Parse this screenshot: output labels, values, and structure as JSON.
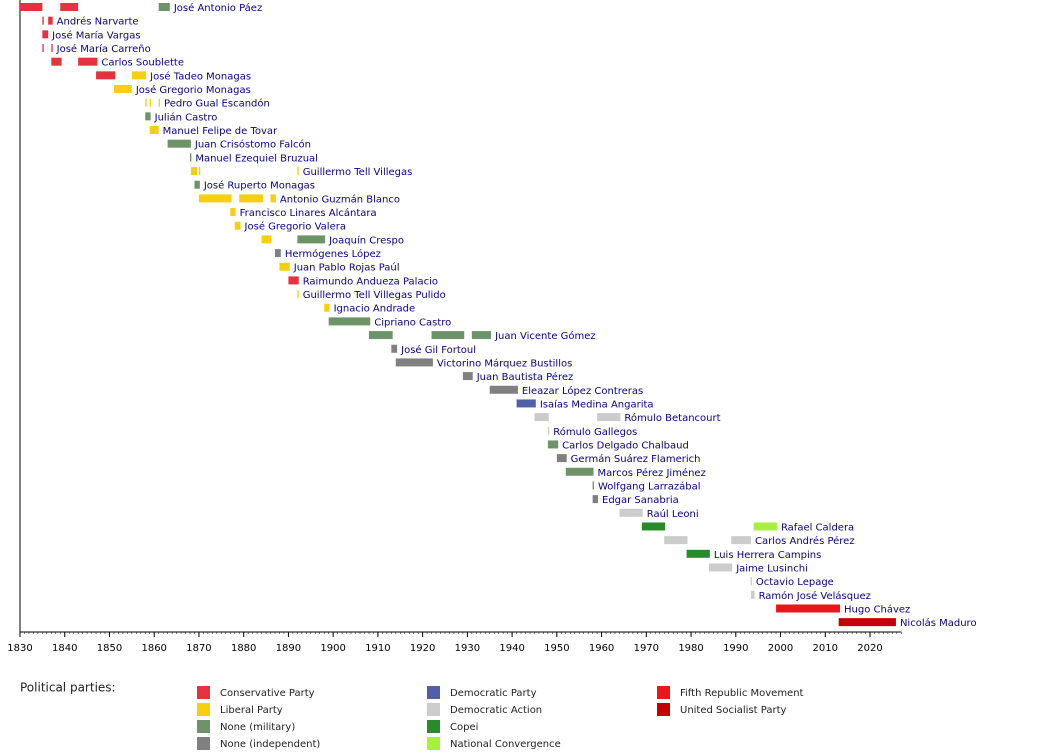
{
  "chart_data": {
    "type": "timeline",
    "xlim": [
      1830,
      2027
    ],
    "xticks": [
      1830,
      1840,
      1850,
      1860,
      1870,
      1880,
      1890,
      1900,
      1910,
      1920,
      1930,
      1940,
      1950,
      1960,
      1970,
      1980,
      1990,
      2000,
      2010,
      2020
    ],
    "legend_title": "Political parties:",
    "parties": [
      {
        "name": "Conservative Party",
        "color": "#e5323f"
      },
      {
        "name": "Liberal Party",
        "color": "#f6d00c"
      },
      {
        "name": "None (military)",
        "color": "#6d9468"
      },
      {
        "name": "None (independent)",
        "color": "#808080"
      },
      {
        "name": "Democratic Party",
        "color": "#5060a8"
      },
      {
        "name": "Democratic Action",
        "color": "#cccccc"
      },
      {
        "name": "Copei",
        "color": "#2a8a2a"
      },
      {
        "name": "National Convergence",
        "color": "#a8f040"
      },
      {
        "name": "Fifth Republic Movement",
        "color": "#e81818"
      },
      {
        "name": "United Socialist Party",
        "color": "#c40000"
      }
    ],
    "rows": [
      {
        "name": "José Antonio Páez",
        "terms": [
          {
            "start": 1830,
            "end": 1835,
            "party": "Conservative Party"
          },
          {
            "start": 1839,
            "end": 1843,
            "party": "Conservative Party"
          },
          {
            "start": 1861,
            "end": 1863.5,
            "party": "None (military)"
          }
        ]
      },
      {
        "name": "Andrés Narvarte",
        "terms": [
          {
            "start": 1835,
            "end": 1835.3,
            "party": "Conservative Party"
          },
          {
            "start": 1836.3,
            "end": 1837.3,
            "party": "Conservative Party"
          }
        ]
      },
      {
        "name": "José María Vargas",
        "terms": [
          {
            "start": 1835,
            "end": 1836.3,
            "party": "Conservative Party"
          }
        ]
      },
      {
        "name": "José María Carreño",
        "terms": [
          {
            "start": 1835,
            "end": 1835.3,
            "party": "Conservative Party"
          },
          {
            "start": 1837,
            "end": 1837.3,
            "party": "Conservative Party"
          }
        ]
      },
      {
        "name": "Carlos Soublette",
        "terms": [
          {
            "start": 1837,
            "end": 1839.3,
            "party": "Conservative Party"
          },
          {
            "start": 1843,
            "end": 1847.3,
            "party": "Conservative Party"
          }
        ]
      },
      {
        "name": "José Tadeo Monagas",
        "terms": [
          {
            "start": 1847,
            "end": 1851.3,
            "party": "Conservative Party"
          },
          {
            "start": 1855,
            "end": 1858.2,
            "party": "Liberal Party"
          }
        ]
      },
      {
        "name": "José Gregorio Monagas",
        "terms": [
          {
            "start": 1851,
            "end": 1855,
            "party": "Liberal Party"
          }
        ]
      },
      {
        "name": "Pedro Gual Escandón",
        "terms": [
          {
            "start": 1858,
            "end": 1858.3,
            "party": "Liberal Party"
          },
          {
            "start": 1859,
            "end": 1859.3,
            "party": "Liberal Party"
          },
          {
            "start": 1861,
            "end": 1861.3,
            "party": "Liberal Party"
          }
        ]
      },
      {
        "name": "Julián Castro",
        "terms": [
          {
            "start": 1858,
            "end": 1859.2,
            "party": "None (military)"
          }
        ]
      },
      {
        "name": "Manuel Felipe de Tovar",
        "terms": [
          {
            "start": 1859,
            "end": 1861,
            "party": "Liberal Party"
          }
        ]
      },
      {
        "name": "Juan Crisóstomo Falcón",
        "terms": [
          {
            "start": 1863,
            "end": 1868.2,
            "party": "None (military)"
          }
        ]
      },
      {
        "name": "Manuel Ezequiel Bruzual",
        "terms": [
          {
            "start": 1868,
            "end": 1868.3,
            "party": "None (military)"
          }
        ]
      },
      {
        "name": "Guillermo Tell Villegas",
        "terms": [
          {
            "start": 1868.2,
            "end": 1869.6,
            "party": "Liberal Party"
          },
          {
            "start": 1870,
            "end": 1870.3,
            "party": "Liberal Party"
          },
          {
            "start": 1892,
            "end": 1892.3,
            "party": "Liberal Party"
          }
        ]
      },
      {
        "name": "José Ruperto Monagas",
        "terms": [
          {
            "start": 1869,
            "end": 1870.2,
            "party": "None (military)"
          }
        ]
      },
      {
        "name": "Antonio Guzmán Blanco",
        "terms": [
          {
            "start": 1870,
            "end": 1877.3,
            "party": "Liberal Party"
          },
          {
            "start": 1879,
            "end": 1884.3,
            "party": "Liberal Party"
          },
          {
            "start": 1886,
            "end": 1887.2,
            "party": "Liberal Party"
          }
        ]
      },
      {
        "name": "Francisco Linares Alcántara",
        "terms": [
          {
            "start": 1877,
            "end": 1878.2,
            "party": "Liberal Party"
          }
        ]
      },
      {
        "name": "José Gregorio Valera",
        "terms": [
          {
            "start": 1878,
            "end": 1879.3,
            "party": "Liberal Party"
          }
        ]
      },
      {
        "name": "Joaquín Crespo",
        "terms": [
          {
            "start": 1884,
            "end": 1886.2,
            "party": "Liberal Party"
          },
          {
            "start": 1892,
            "end": 1898.2,
            "party": "None (military)"
          }
        ]
      },
      {
        "name": "Hermógenes López",
        "terms": [
          {
            "start": 1887,
            "end": 1888.3,
            "party": "None (independent)"
          }
        ]
      },
      {
        "name": "Juan Pablo Rojas Paúl",
        "terms": [
          {
            "start": 1888,
            "end": 1890.3,
            "party": "Liberal Party"
          }
        ]
      },
      {
        "name": "Raimundo Andueza Palacio",
        "terms": [
          {
            "start": 1890,
            "end": 1892.3,
            "party": "Conservative Party"
          }
        ]
      },
      {
        "name": "Guillermo Tell Villegas Pulido",
        "terms": [
          {
            "start": 1892,
            "end": 1892.3,
            "party": "Liberal Party"
          }
        ]
      },
      {
        "name": "Ignacio Andrade",
        "terms": [
          {
            "start": 1898,
            "end": 1899.2,
            "party": "Liberal Party"
          }
        ]
      },
      {
        "name": "Cipriano Castro",
        "terms": [
          {
            "start": 1899,
            "end": 1908.3,
            "party": "None (military)"
          }
        ]
      },
      {
        "name": "Juan Vicente Gómez",
        "terms": [
          {
            "start": 1908,
            "end": 1913.3,
            "party": "None (military)"
          },
          {
            "start": 1922,
            "end": 1929.3,
            "party": "None (military)"
          },
          {
            "start": 1931,
            "end": 1935.3,
            "party": "None (military)"
          }
        ]
      },
      {
        "name": "José Gil Fortoul",
        "terms": [
          {
            "start": 1913,
            "end": 1914.3,
            "party": "None (independent)"
          }
        ]
      },
      {
        "name": "Victorino Márquez Bustillos",
        "terms": [
          {
            "start": 1914,
            "end": 1922.3,
            "party": "None (independent)"
          }
        ]
      },
      {
        "name": "Juan Bautista Pérez",
        "terms": [
          {
            "start": 1929,
            "end": 1931.2,
            "party": "None (independent)"
          }
        ]
      },
      {
        "name": "Eleazar López Contreras",
        "terms": [
          {
            "start": 1935,
            "end": 1941.3,
            "party": "None (independent)"
          }
        ]
      },
      {
        "name": "Isaías Medina Angarita",
        "terms": [
          {
            "start": 1941,
            "end": 1945.3,
            "party": "Democratic Party"
          }
        ]
      },
      {
        "name": "Rómulo Betancourt",
        "terms": [
          {
            "start": 1945,
            "end": 1948.2,
            "party": "Democratic Action"
          },
          {
            "start": 1959,
            "end": 1964.2,
            "party": "Democratic Action"
          }
        ]
      },
      {
        "name": "Rómulo Gallegos",
        "terms": [
          {
            "start": 1948,
            "end": 1948.3,
            "party": "Democratic Action"
          }
        ]
      },
      {
        "name": "Carlos Delgado Chalbaud",
        "terms": [
          {
            "start": 1948,
            "end": 1950.3,
            "party": "None (military)"
          }
        ]
      },
      {
        "name": "Germán Suárez Flamerich",
        "terms": [
          {
            "start": 1950,
            "end": 1952.2,
            "party": "None (independent)"
          }
        ]
      },
      {
        "name": "Marcos Pérez Jiménez",
        "terms": [
          {
            "start": 1952,
            "end": 1958.2,
            "party": "None (military)"
          }
        ]
      },
      {
        "name": "Wolfgang Larrazábal",
        "terms": [
          {
            "start": 1958,
            "end": 1958.3,
            "party": "None (military)"
          }
        ]
      },
      {
        "name": "Edgar Sanabria",
        "terms": [
          {
            "start": 1958,
            "end": 1959.2,
            "party": "None (independent)"
          }
        ]
      },
      {
        "name": "Raúl Leoni",
        "terms": [
          {
            "start": 1964,
            "end": 1969.2,
            "party": "Democratic Action"
          }
        ]
      },
      {
        "name": "Rafael Caldera",
        "terms": [
          {
            "start": 1969,
            "end": 1974.2,
            "party": "Copei"
          },
          {
            "start": 1994,
            "end": 1999.2,
            "party": "National Convergence"
          }
        ]
      },
      {
        "name": "Carlos Andrés Pérez",
        "terms": [
          {
            "start": 1974,
            "end": 1979.2,
            "party": "Democratic Action"
          },
          {
            "start": 1989,
            "end": 1993.4,
            "party": "Democratic Action"
          }
        ]
      },
      {
        "name": "Luis Herrera Campins",
        "terms": [
          {
            "start": 1979,
            "end": 1984.2,
            "party": "Copei"
          }
        ]
      },
      {
        "name": "Jaime Lusinchi",
        "terms": [
          {
            "start": 1984,
            "end": 1989.2,
            "party": "Democratic Action"
          }
        ]
      },
      {
        "name": "Octavio Lepage",
        "terms": [
          {
            "start": 1993.3,
            "end": 1993.6,
            "party": "Democratic Action"
          }
        ]
      },
      {
        "name": "Ramón José Velásquez",
        "terms": [
          {
            "start": 1993.4,
            "end": 1994.2,
            "party": "Democratic Action"
          }
        ]
      },
      {
        "name": "Hugo Chávez",
        "terms": [
          {
            "start": 1999,
            "end": 2013.3,
            "party": "Fifth Republic Movement"
          }
        ]
      },
      {
        "name": "Nicolás Maduro",
        "terms": [
          {
            "start": 2013,
            "end": 2025.8,
            "party": "United Socialist Party"
          }
        ]
      }
    ]
  }
}
